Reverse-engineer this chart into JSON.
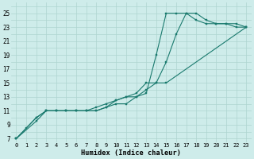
{
  "xlabel": "Humidex (Indice chaleur)",
  "xlim": [
    -0.5,
    23.5
  ],
  "ylim": [
    6.5,
    26.5
  ],
  "xticks": [
    0,
    1,
    2,
    3,
    4,
    5,
    6,
    7,
    8,
    9,
    10,
    11,
    12,
    13,
    14,
    15,
    16,
    17,
    18,
    19,
    20,
    21,
    22,
    23
  ],
  "yticks": [
    7,
    9,
    11,
    13,
    15,
    17,
    19,
    21,
    23,
    25
  ],
  "background_color": "#ceecea",
  "grid_color": "#aed4d0",
  "line_color": "#1a7a6e",
  "curve1_x": [
    0,
    1,
    2,
    3,
    4,
    5,
    6,
    7,
    8,
    9,
    10,
    11,
    12,
    13,
    14,
    15,
    16,
    17,
    18,
    19,
    20,
    21,
    22,
    23
  ],
  "curve1_y": [
    7,
    8.5,
    10,
    11,
    11,
    11,
    11,
    11,
    11.5,
    12,
    12.5,
    13,
    13,
    13.5,
    19,
    25,
    25,
    25,
    24,
    23.5,
    23.5,
    23.5,
    23,
    23
  ],
  "curve2_x": [
    0,
    2,
    3,
    4,
    5,
    6,
    7,
    8,
    9,
    10,
    11,
    12,
    13,
    14,
    15,
    16,
    17,
    18,
    19,
    20,
    21,
    22,
    23
  ],
  "curve2_y": [
    7,
    10,
    11,
    11,
    11,
    11,
    11,
    11,
    11.5,
    12,
    12,
    13,
    14,
    15,
    18,
    22,
    25,
    25,
    24,
    23.5,
    23.5,
    23.5,
    23
  ],
  "curve3_x": [
    0,
    2,
    3,
    4,
    5,
    6,
    7,
    8,
    9,
    10,
    11,
    12,
    13,
    14,
    15,
    23
  ],
  "curve3_y": [
    7,
    9.5,
    11,
    11,
    11,
    11,
    11,
    11,
    11.5,
    12.5,
    13,
    13.5,
    15,
    15,
    15,
    23
  ]
}
